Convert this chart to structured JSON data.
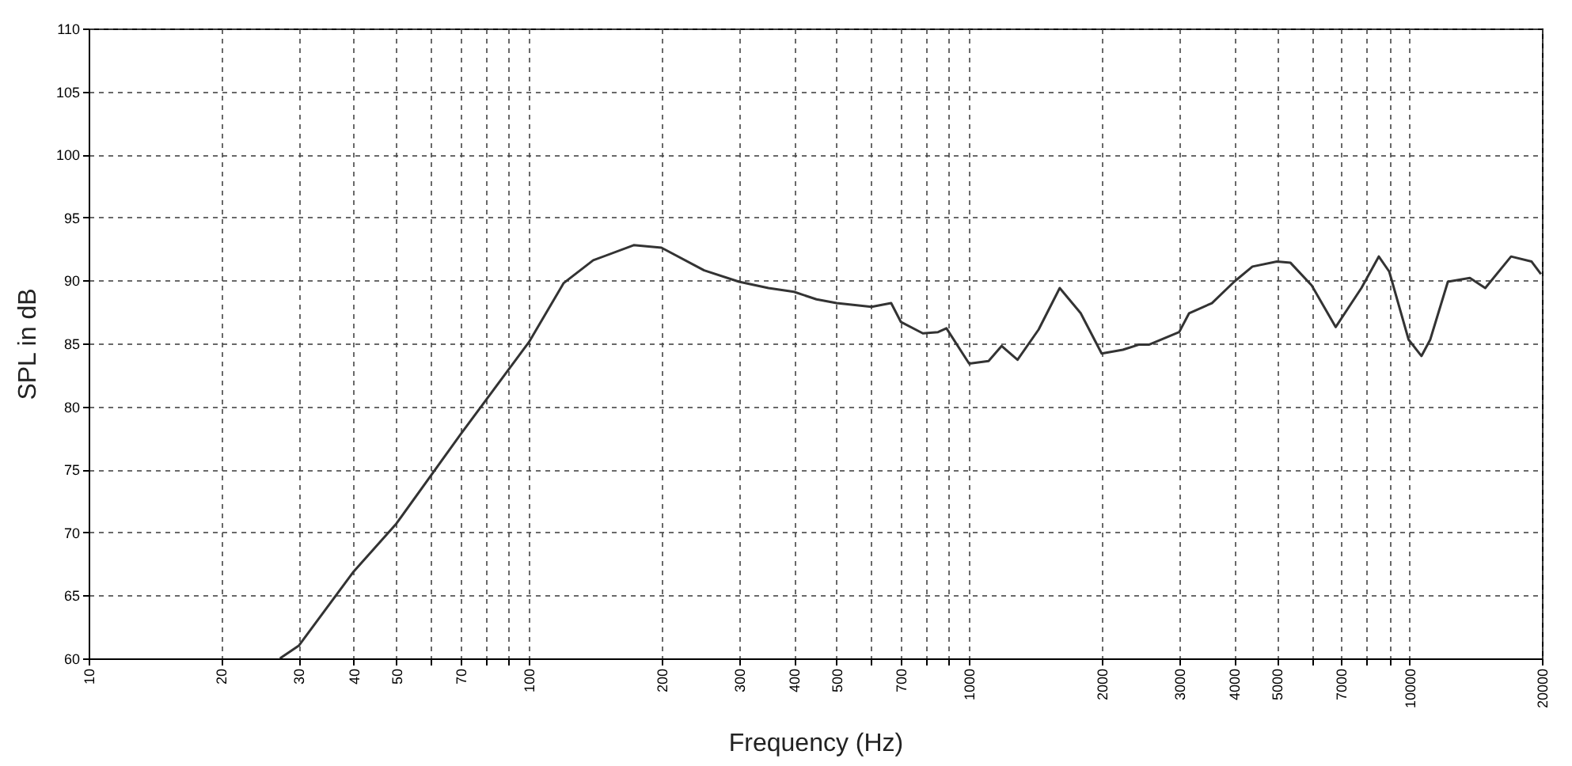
{
  "chart_data": {
    "type": "line",
    "xlabel": "Frequency (Hz)",
    "ylabel": "SPL in dB",
    "log": "x",
    "grid": true,
    "line_style": "solid",
    "marker": "none",
    "xlim": [
      10,
      20000
    ],
    "ylim": [
      60,
      110
    ],
    "xticks": [
      10,
      20,
      30,
      40,
      50,
      {
        "value": 60,
        "label": null
      },
      70,
      {
        "value": 80,
        "label": null
      },
      {
        "value": 90,
        "label": null
      },
      100,
      200,
      300,
      400,
      500,
      {
        "value": 600,
        "label": null
      },
      700,
      {
        "value": 800,
        "label": null
      },
      {
        "value": 900,
        "label": null
      },
      1000,
      2000,
      3000,
      4000,
      5000,
      {
        "value": 6000,
        "label": null
      },
      7000,
      {
        "value": 8000,
        "label": null
      },
      {
        "value": 9000,
        "label": null
      },
      10000,
      20000
    ],
    "yticks": [
      60,
      65,
      70,
      75,
      80,
      85,
      90,
      95,
      100,
      105,
      110
    ],
    "x": [
      27.2,
      30,
      40,
      50,
      70,
      100,
      120,
      140,
      173,
      200,
      250,
      300,
      350,
      400,
      450,
      500,
      600,
      665,
      700,
      785,
      850,
      888,
      1000,
      1107,
      1185,
      1288,
      1438,
      1606,
      1792,
      2000,
      2234,
      2427,
      2560,
      3000,
      3160,
      3560,
      4000,
      4400,
      5000,
      5370,
      6000,
      6800,
      7780,
      8520,
      9000,
      9960,
      10650,
      11150,
      12230,
      13720,
      14870,
      17020,
      18950,
      19900
    ],
    "series": [
      {
        "color": "#333333",
        "values": [
          60,
          61,
          66.9,
          70.7,
          77.8,
          85.1,
          89.8,
          91.6,
          92.8,
          92.6,
          90.8,
          89.9,
          89.4,
          89.1,
          88.5,
          88.2,
          87.9,
          88.2,
          86.7,
          85.8,
          85.9,
          86.2,
          83.4,
          83.6,
          84.8,
          83.7,
          86.1,
          89.4,
          87.4,
          84.2,
          84.5,
          84.9,
          84.9,
          85.9,
          87.4,
          88.2,
          89.9,
          91.1,
          91.5,
          91.4,
          89.6,
          86.3,
          89.4,
          91.9,
          90.7,
          85.3,
          84,
          85.3,
          89.9,
          90.2,
          89.4,
          91.9,
          91.5,
          90.5
        ]
      }
    ]
  }
}
